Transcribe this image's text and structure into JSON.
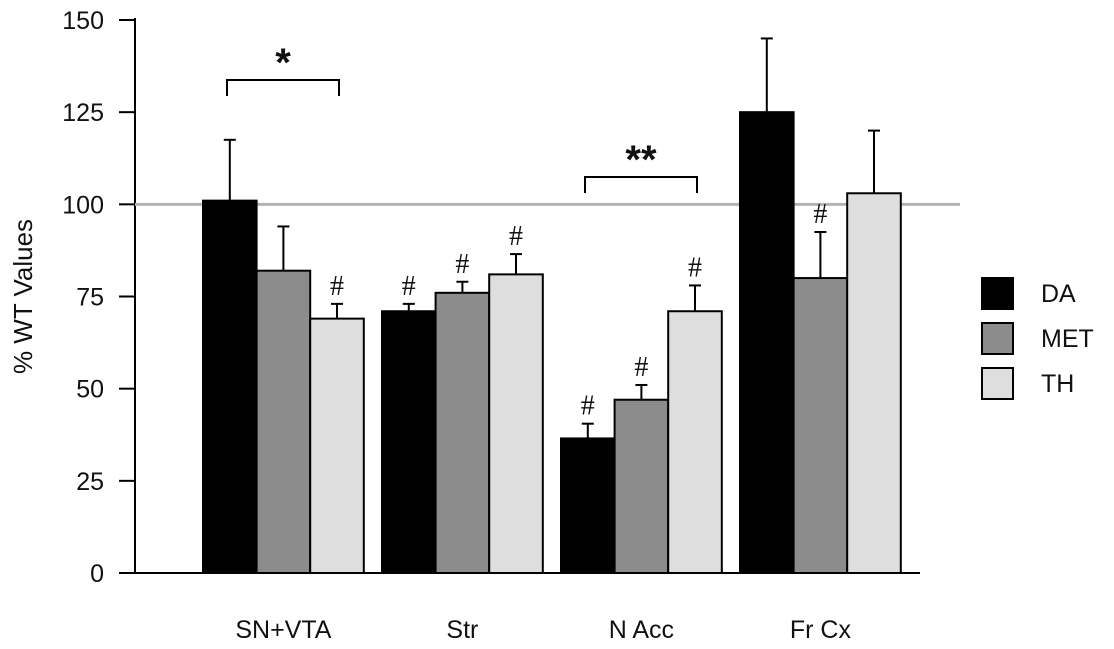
{
  "chart_data": {
    "type": "bar",
    "ylabel": "% WT Values",
    "xlabel": "",
    "ylim": [
      0,
      150
    ],
    "yticks": [
      0,
      25,
      50,
      75,
      100,
      125,
      150
    ],
    "reference_line": 100,
    "categories": [
      "SN+VTA",
      "Str",
      "N Acc",
      "Fr Cx"
    ],
    "series": [
      {
        "name": "DA",
        "color": "#000000",
        "values": [
          101,
          71,
          36.5,
          125
        ],
        "errors": [
          16.5,
          2,
          4,
          20
        ]
      },
      {
        "name": "MET",
        "color": "#8c8c8c",
        "values": [
          82,
          76,
          47,
          80
        ],
        "errors": [
          12,
          3,
          4,
          12.5
        ]
      },
      {
        "name": "TH",
        "color": "#dedede",
        "values": [
          69,
          81,
          71,
          103
        ],
        "errors": [
          4,
          5.5,
          7,
          17
        ]
      }
    ],
    "hash_marks": [
      {
        "category": 0,
        "series": 2,
        "label": "#"
      },
      {
        "category": 1,
        "series": 0,
        "label": "#"
      },
      {
        "category": 1,
        "series": 1,
        "label": "#"
      },
      {
        "category": 1,
        "series": 2,
        "label": "#"
      },
      {
        "category": 2,
        "series": 0,
        "label": "#"
      },
      {
        "category": 2,
        "series": 1,
        "label": "#"
      },
      {
        "category": 2,
        "series": 2,
        "label": "#"
      },
      {
        "category": 3,
        "series": 1,
        "label": "#"
      }
    ],
    "significance_brackets": [
      {
        "category": 0,
        "label": "*"
      },
      {
        "category": 2,
        "label": "**"
      }
    ],
    "legend_position": "right"
  }
}
